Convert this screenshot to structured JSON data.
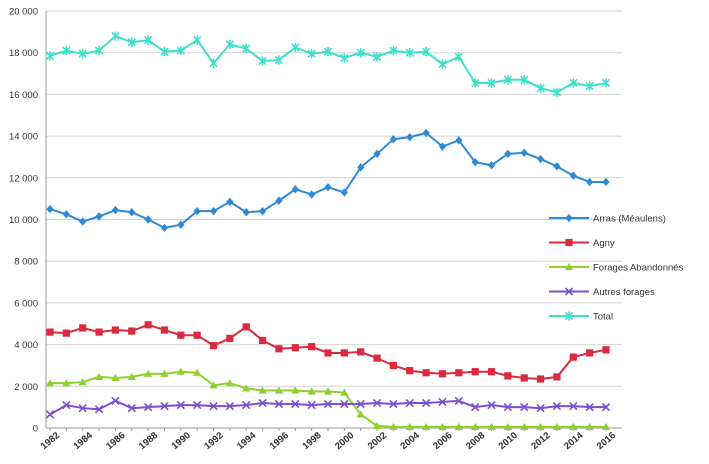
{
  "chart_data": {
    "type": "line",
    "title": "",
    "xlabel": "",
    "ylabel": "",
    "x": [
      1982,
      1983,
      1984,
      1985,
      1986,
      1987,
      1988,
      1989,
      1990,
      1991,
      1992,
      1993,
      1994,
      1995,
      1996,
      1997,
      1998,
      1999,
      2000,
      2001,
      2002,
      2003,
      2004,
      2005,
      2006,
      2007,
      2008,
      2009,
      2010,
      2011,
      2012,
      2013,
      2014,
      2015,
      2016
    ],
    "x_tick_labels": [
      "1982",
      "1984",
      "1986",
      "1988",
      "1990",
      "1992",
      "1994",
      "1996",
      "1998",
      "2000",
      "2002",
      "2004",
      "2006",
      "2008",
      "2010",
      "2012",
      "2014",
      "2016"
    ],
    "ylim": [
      0,
      20000
    ],
    "y_tick_labels": [
      "0",
      "2 000",
      "4 000",
      "6 000",
      "8 000",
      "10 000",
      "12 000",
      "14 000",
      "16 000",
      "18 000",
      "20 000"
    ],
    "grid": true,
    "legend_position": "right",
    "series": [
      {
        "name": "Arras (Méaulens)",
        "color": "#2e8ad6",
        "marker": "diamond",
        "values": [
          10500,
          10250,
          9900,
          10150,
          10450,
          10350,
          10000,
          9600,
          9750,
          10400,
          10400,
          10850,
          10350,
          10400,
          10900,
          11450,
          11200,
          11550,
          11300,
          12500,
          13150,
          13850,
          13950,
          14150,
          13500,
          13800,
          12750,
          12600,
          13150,
          13200,
          12900,
          12550,
          12100,
          11800,
          11800
        ]
      },
      {
        "name": "Agny",
        "color": "#d92a3f",
        "marker": "square",
        "values": [
          4600,
          4550,
          4800,
          4600,
          4700,
          4650,
          4950,
          4700,
          4450,
          4450,
          3950,
          4300,
          4850,
          4200,
          3800,
          3850,
          3900,
          3600,
          3600,
          3650,
          3350,
          3000,
          2750,
          2650,
          2600,
          2650,
          2700,
          2700,
          2500,
          2400,
          2350,
          2450,
          3400,
          3600,
          3750
        ]
      },
      {
        "name": "Forages Abandonnés",
        "color": "#8cd12d",
        "marker": "triangle",
        "values": [
          2150,
          2150,
          2200,
          2450,
          2400,
          2450,
          2600,
          2600,
          2700,
          2650,
          2050,
          2150,
          1900,
          1800,
          1800,
          1800,
          1750,
          1750,
          1700,
          650,
          100,
          50,
          50,
          50,
          50,
          50,
          50,
          50,
          50,
          50,
          50,
          50,
          50,
          50,
          50
        ]
      },
      {
        "name": "Autres forages",
        "color": "#7b4fd0",
        "marker": "x",
        "values": [
          650,
          1100,
          950,
          900,
          1300,
          950,
          1000,
          1050,
          1100,
          1100,
          1050,
          1050,
          1100,
          1200,
          1150,
          1150,
          1100,
          1150,
          1150,
          1150,
          1200,
          1150,
          1200,
          1200,
          1250,
          1300,
          1000,
          1100,
          1000,
          1000,
          950,
          1050,
          1050,
          1000,
          1000
        ]
      },
      {
        "name": "Total",
        "color": "#3fe0c8",
        "marker": "star",
        "values": [
          17850,
          18100,
          17950,
          18100,
          18800,
          18500,
          18600,
          18050,
          18100,
          18600,
          17500,
          18400,
          18200,
          17600,
          17650,
          18250,
          17950,
          18050,
          17750,
          18000,
          17800,
          18100,
          18000,
          18050,
          17450,
          17800,
          16550,
          16550,
          16700,
          16700,
          16300,
          16100,
          16550,
          16400,
          16550
        ]
      }
    ]
  }
}
